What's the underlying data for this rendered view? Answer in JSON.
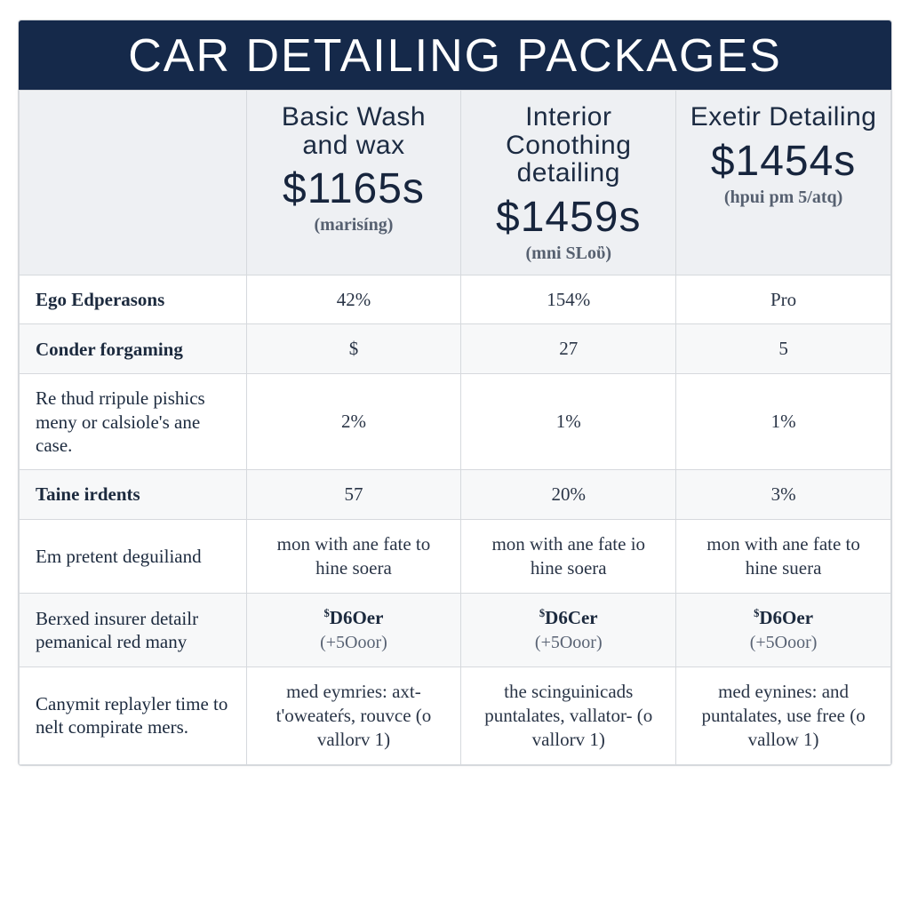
{
  "title": "CAR DETAILING PACKAGES",
  "colors": {
    "header_bg": "#15294a",
    "header_text": "#ffffff",
    "th_bg": "#eef0f3",
    "border": "#d6d9dd",
    "label_text": "#1c2a3e",
    "cell_text": "#2a3547",
    "sub_text": "#596374",
    "even_row_bg": "#f7f8f9",
    "odd_row_bg": "#ffffff"
  },
  "packages": [
    {
      "name": "Basic Wash and wax",
      "price": "$1165s",
      "subtitle": "(marisíng)"
    },
    {
      "name": "Interior Conothing detailing",
      "price": "$1459s",
      "subtitle": "(mni SLoὒ)"
    },
    {
      "name": "Exetir Detailing",
      "price": "$1454s",
      "subtitle": "(hpui pm 5/atq)"
    }
  ],
  "rows": [
    {
      "label": "Ego Edperasons",
      "bold": true,
      "cells": [
        "42%",
        "154%",
        "Pro"
      ]
    },
    {
      "label": "Conder forgaming",
      "bold": true,
      "cells": [
        "$",
        "27",
        "5"
      ]
    },
    {
      "label": "Re thud rripule pishics meny or calsiole's ane case.",
      "bold": false,
      "cells": [
        "2%",
        "1%",
        "1%"
      ]
    },
    {
      "label": "Taine irdents",
      "bold": true,
      "cells": [
        "57",
        "20%",
        "3%"
      ]
    },
    {
      "label": "Em pretent deguiliand",
      "bold": false,
      "cells": [
        "mon with ane fate to hine soera",
        "mon with ane fate io hine soera",
        "mon with ane fate to hine suera"
      ]
    },
    {
      "label": "Berxed insurer detailr pemanical red many",
      "bold": false,
      "cells": [
        {
          "main": "$D6Oer",
          "sub": "(+5Ooor)"
        },
        {
          "main": "$D6Cer",
          "sub": "(+5Ooor)"
        },
        {
          "main": "$D6Oer",
          "sub": "(+5Ooor)"
        }
      ]
    },
    {
      "label": "Canymit replayler time to nelt compirate mers.",
      "bold": false,
      "cells": [
        "med eymries: axt-t'oweateŕs, rouvce  (o vallorv 1)",
        "the scinguinicads puntalates, vallator-  (o vallorv 1)",
        "med eynines: and puntalates, use free  (o vallow 1)"
      ]
    }
  ]
}
